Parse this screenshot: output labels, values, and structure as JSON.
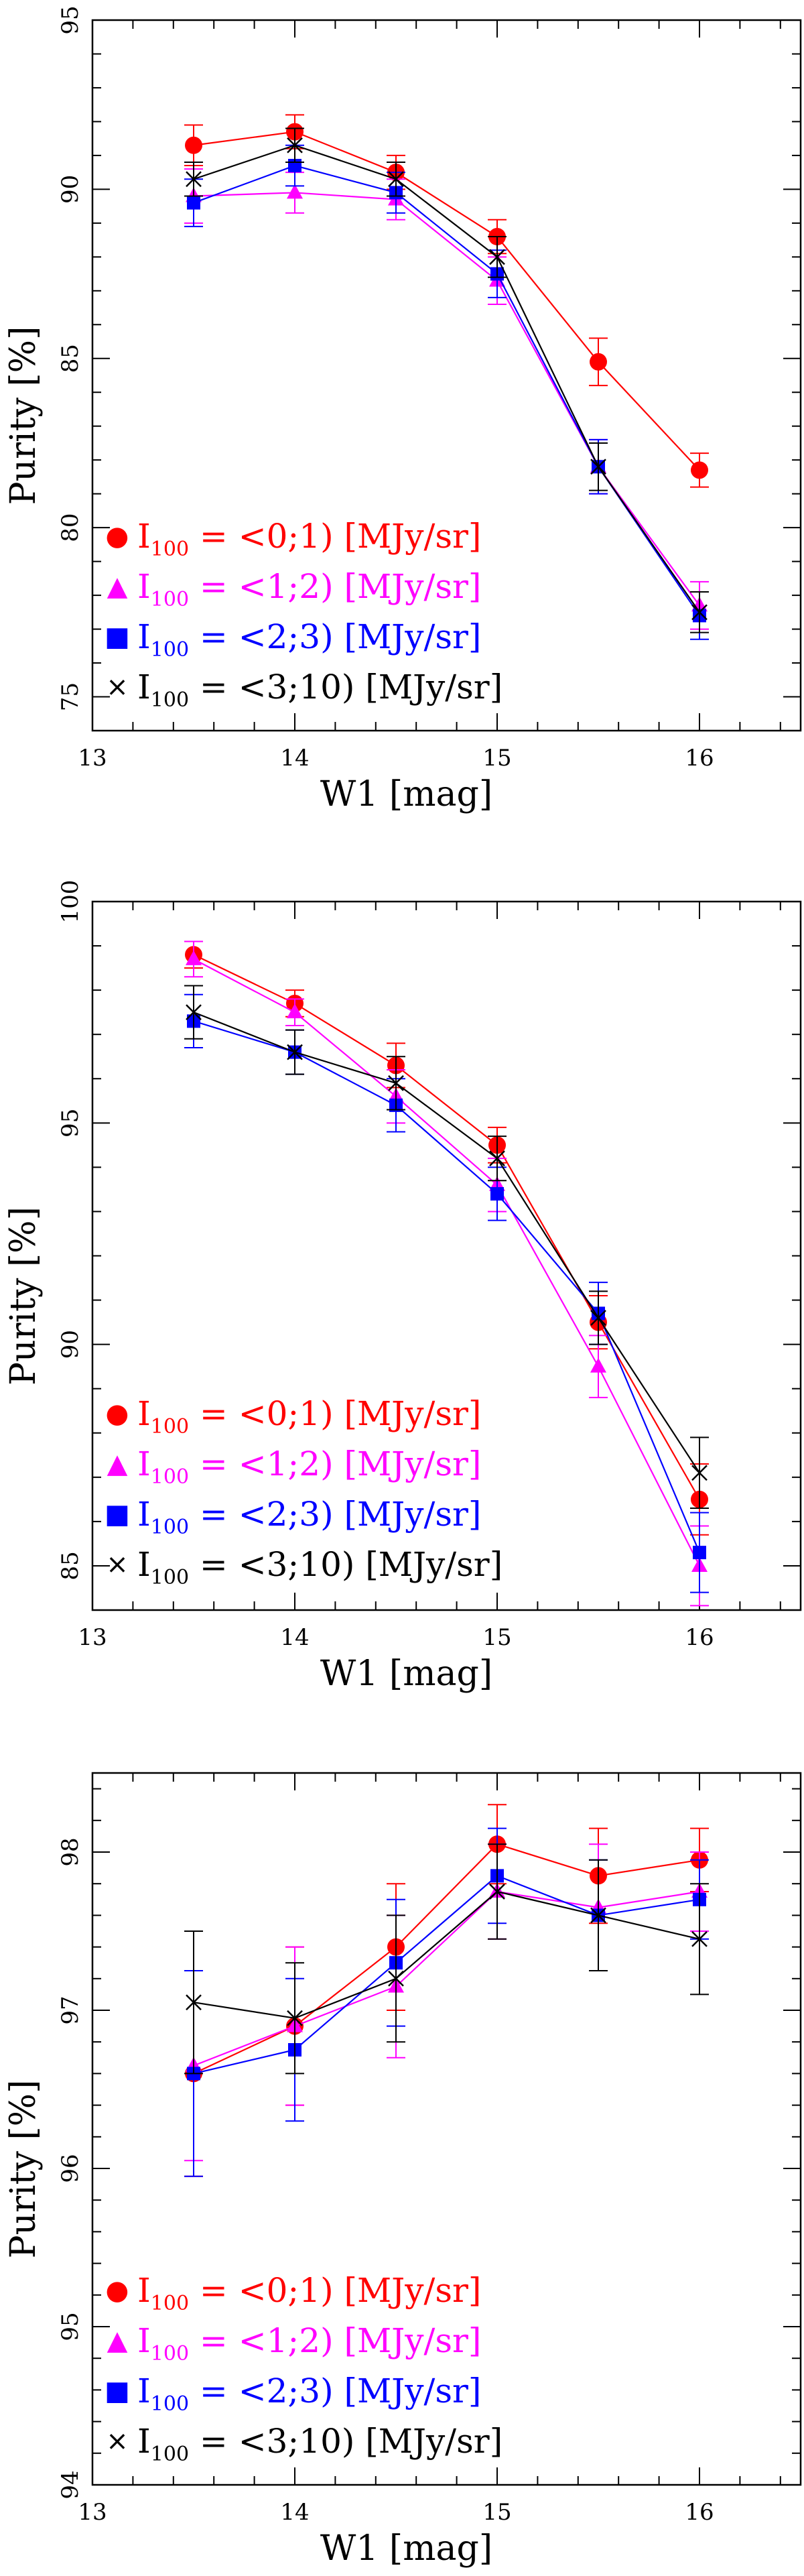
{
  "chart_data": [
    {
      "type": "line",
      "xlabel": "W1 [mag]",
      "ylabel": "Purity [%]",
      "xlim": [
        13,
        16.5
      ],
      "ylim": [
        74,
        95
      ],
      "xticks": [
        "13",
        "14",
        "15",
        "16"
      ],
      "yticks": [
        "75",
        "80",
        "85",
        "90",
        "95"
      ],
      "x": [
        13.5,
        14.0,
        14.5,
        15.0,
        15.5,
        16.0
      ],
      "series": [
        {
          "name": "I100 = <0;1) [MJy/sr]",
          "values": [
            91.3,
            91.7,
            90.5,
            88.6,
            84.9,
            81.7
          ],
          "errors": [
            0.6,
            0.5,
            0.5,
            0.5,
            0.7,
            0.5
          ]
        },
        {
          "name": "I100 = <1;2) [MJy/sr]",
          "values": [
            89.8,
            89.9,
            89.7,
            87.3,
            81.8,
            77.7
          ],
          "errors": [
            0.8,
            0.6,
            0.6,
            0.7,
            0.8,
            0.7
          ]
        },
        {
          "name": "I100 = <2;3) [MJy/sr]",
          "values": [
            89.6,
            90.7,
            89.9,
            87.5,
            81.8,
            77.4
          ],
          "errors": [
            0.7,
            0.6,
            0.6,
            0.7,
            0.8,
            0.7
          ]
        },
        {
          "name": "I100 = <3;10) [MJy/sr]",
          "values": [
            90.3,
            91.3,
            90.3,
            88.0,
            81.8,
            77.5
          ],
          "errors": [
            0.5,
            0.5,
            0.5,
            0.6,
            0.7,
            0.6
          ]
        }
      ]
    },
    {
      "type": "line",
      "xlabel": "W1 [mag]",
      "ylabel": "Purity [%]",
      "xlim": [
        13,
        16.5
      ],
      "ylim": [
        84,
        100
      ],
      "xticks": [
        "13",
        "14",
        "15",
        "16"
      ],
      "yticks": [
        "85",
        "90",
        "95",
        "100"
      ],
      "x": [
        13.5,
        14.0,
        14.5,
        15.0,
        15.5,
        16.0
      ],
      "series": [
        {
          "name": "I100 = <0;1) [MJy/sr]",
          "values": [
            98.8,
            97.7,
            96.3,
            94.5,
            90.5,
            86.5
          ],
          "errors": [
            0.3,
            0.3,
            0.5,
            0.4,
            0.6,
            0.8
          ]
        },
        {
          "name": "I100 = <1;2) [MJy/sr]",
          "values": [
            98.7,
            97.5,
            95.6,
            93.6,
            89.5,
            85.0
          ],
          "errors": [
            0.4,
            0.3,
            0.6,
            0.6,
            0.7,
            0.9
          ]
        },
        {
          "name": "I100 = <2;3) [MJy/sr]",
          "values": [
            97.3,
            96.6,
            95.4,
            93.4,
            90.7,
            85.3
          ],
          "errors": [
            0.6,
            0.5,
            0.6,
            0.6,
            0.7,
            0.9
          ]
        },
        {
          "name": "I100 = <3;10) [MJy/sr]",
          "values": [
            97.5,
            96.6,
            95.9,
            94.2,
            90.6,
            87.1
          ],
          "errors": [
            0.6,
            0.5,
            0.6,
            0.5,
            0.6,
            0.8
          ]
        }
      ]
    },
    {
      "type": "line",
      "xlabel": "W1 [mag]",
      "ylabel": "Purity [%]",
      "xlim": [
        13,
        16.5
      ],
      "ylim": [
        94,
        98.5
      ],
      "xticks": [
        "13",
        "14",
        "15",
        "16"
      ],
      "yticks": [
        "94",
        "95",
        "96",
        "97",
        "98"
      ],
      "x": [
        13.5,
        14.0,
        14.5,
        15.0,
        15.5,
        16.0
      ],
      "series": [
        {
          "name": "I100 = <0;1) [MJy/sr]",
          "values": [
            96.6,
            96.9,
            97.4,
            98.05,
            97.85,
            97.95
          ],
          "errors": [
            0.65,
            0.5,
            0.4,
            0.25,
            0.3,
            0.2
          ]
        },
        {
          "name": "I100 = <1;2) [MJy/sr]",
          "values": [
            96.65,
            96.9,
            97.15,
            97.75,
            97.65,
            97.75
          ],
          "errors": [
            0.6,
            0.5,
            0.45,
            0.3,
            0.4,
            0.25
          ]
        },
        {
          "name": "I100 = <2;3) [MJy/sr]",
          "values": [
            96.6,
            96.75,
            97.3,
            97.85,
            97.6,
            97.7
          ],
          "errors": [
            0.65,
            0.45,
            0.4,
            0.3,
            0.35,
            0.25
          ]
        },
        {
          "name": "I100 = <3;10) [MJy/sr]",
          "values": [
            97.05,
            96.95,
            97.2,
            97.75,
            97.6,
            97.45
          ],
          "errors": [
            0.45,
            0.35,
            0.4,
            0.3,
            0.35,
            0.35
          ]
        }
      ]
    }
  ],
  "legend": [
    {
      "symbol": "●",
      "base": "I",
      "sub": "100",
      "rest": " = <0;1) [MJy/sr]",
      "color": "#ff0000"
    },
    {
      "symbol": "▲",
      "base": "I",
      "sub": "100",
      "rest": " = <1;2) [MJy/sr]",
      "color": "#ff00ff"
    },
    {
      "symbol": "■",
      "base": "I",
      "sub": "100",
      "rest": " = <2;3) [MJy/sr]",
      "color": "#0000ff"
    },
    {
      "symbol": "×",
      "base": "I",
      "sub": "100",
      "rest": " = <3;10) [MJy/sr]",
      "color": "#000000"
    }
  ],
  "series_styles": [
    {
      "color": "#ff0000",
      "marker": "circle"
    },
    {
      "color": "#ff00ff",
      "marker": "triangle"
    },
    {
      "color": "#0000ff",
      "marker": "square"
    },
    {
      "color": "#000000",
      "marker": "cross"
    }
  ]
}
